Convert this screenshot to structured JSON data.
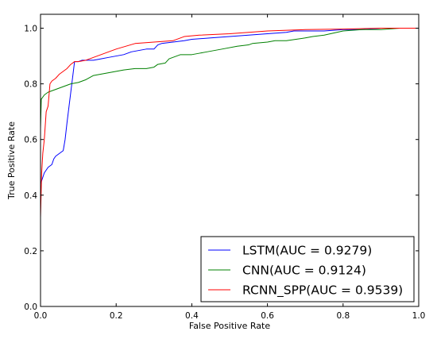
{
  "chart_data": {
    "type": "line",
    "title": "",
    "xlabel": "False Positive Rate",
    "ylabel": "True Positive Rate",
    "xlim": [
      0.0,
      1.0
    ],
    "ylim": [
      0.0,
      1.05
    ],
    "xticks": [
      "0.0",
      "0.2",
      "0.4",
      "0.6",
      "0.8",
      "1.0"
    ],
    "yticks": [
      "0.0",
      "0.2",
      "0.4",
      "0.6",
      "0.8",
      "1.0"
    ],
    "grid": false,
    "legend_position": "lower-right",
    "series": [
      {
        "name": "LSTM(AUC = 0.9279)",
        "color": "#0000ff",
        "x": [
          0.0,
          0.0,
          0.005,
          0.01,
          0.015,
          0.02,
          0.03,
          0.035,
          0.04,
          0.05,
          0.06,
          0.065,
          0.07,
          0.08,
          0.09,
          0.1,
          0.11,
          0.12,
          0.14,
          0.16,
          0.18,
          0.2,
          0.22,
          0.23,
          0.24,
          0.26,
          0.28,
          0.3,
          0.31,
          0.32,
          0.35,
          0.38,
          0.4,
          0.45,
          0.5,
          0.55,
          0.6,
          0.65,
          0.67,
          0.7,
          0.75,
          0.8,
          0.85,
          0.9,
          0.95,
          1.0
        ],
        "y": [
          0.32,
          0.44,
          0.46,
          0.48,
          0.49,
          0.5,
          0.51,
          0.53,
          0.54,
          0.55,
          0.56,
          0.6,
          0.66,
          0.77,
          0.88,
          0.88,
          0.885,
          0.885,
          0.885,
          0.89,
          0.895,
          0.9,
          0.905,
          0.91,
          0.915,
          0.92,
          0.925,
          0.925,
          0.94,
          0.945,
          0.95,
          0.955,
          0.96,
          0.965,
          0.97,
          0.975,
          0.98,
          0.985,
          0.99,
          0.99,
          0.99,
          0.995,
          0.995,
          1.0,
          1.0,
          1.0
        ]
      },
      {
        "name": "CNN(AUC = 0.9124)",
        "color": "#008000",
        "x": [
          0.0,
          0.0,
          0.002,
          0.01,
          0.02,
          0.03,
          0.04,
          0.06,
          0.08,
          0.1,
          0.12,
          0.14,
          0.16,
          0.18,
          0.2,
          0.22,
          0.25,
          0.28,
          0.3,
          0.31,
          0.33,
          0.34,
          0.36,
          0.37,
          0.4,
          0.42,
          0.44,
          0.48,
          0.52,
          0.55,
          0.56,
          0.6,
          0.62,
          0.65,
          0.7,
          0.72,
          0.75,
          0.8,
          0.85,
          0.9,
          0.95,
          1.0
        ],
        "y": [
          0.32,
          0.64,
          0.745,
          0.76,
          0.77,
          0.775,
          0.78,
          0.79,
          0.8,
          0.805,
          0.815,
          0.83,
          0.835,
          0.84,
          0.845,
          0.85,
          0.855,
          0.855,
          0.86,
          0.87,
          0.875,
          0.89,
          0.9,
          0.905,
          0.905,
          0.91,
          0.915,
          0.925,
          0.935,
          0.94,
          0.945,
          0.95,
          0.955,
          0.955,
          0.965,
          0.97,
          0.975,
          0.99,
          0.995,
          0.995,
          1.0,
          1.0
        ]
      },
      {
        "name": "RCNN_SPP(AUC = 0.9539)",
        "color": "#ff0000",
        "x": [
          0.0,
          0.003,
          0.006,
          0.01,
          0.015,
          0.02,
          0.025,
          0.03,
          0.04,
          0.05,
          0.06,
          0.07,
          0.08,
          0.09,
          0.1,
          0.12,
          0.14,
          0.16,
          0.18,
          0.2,
          0.25,
          0.3,
          0.35,
          0.38,
          0.42,
          0.5,
          0.55,
          0.6,
          0.7,
          0.8,
          0.9,
          1.0
        ],
        "y": [
          0.32,
          0.48,
          0.55,
          0.6,
          0.7,
          0.72,
          0.8,
          0.81,
          0.82,
          0.835,
          0.845,
          0.855,
          0.87,
          0.88,
          0.88,
          0.885,
          0.895,
          0.905,
          0.915,
          0.925,
          0.945,
          0.95,
          0.955,
          0.97,
          0.975,
          0.98,
          0.985,
          0.99,
          0.995,
          0.997,
          1.0,
          1.0
        ]
      }
    ]
  }
}
